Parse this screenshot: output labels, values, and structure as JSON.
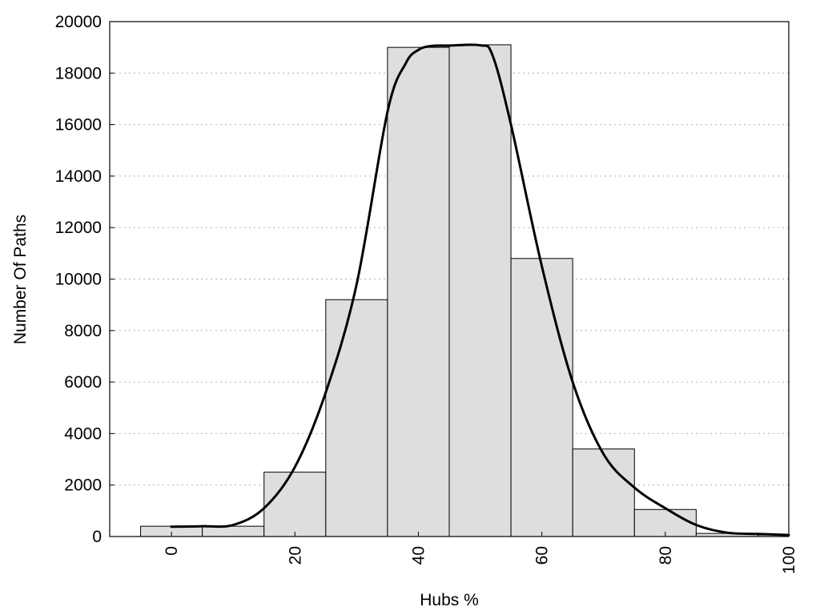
{
  "chart_data": {
    "type": "bar",
    "title": "",
    "xlabel": "Hubs %",
    "ylabel": "Number Of Paths",
    "xlim": [
      -10,
      100
    ],
    "ylim": [
      0,
      20000
    ],
    "xticks": [
      0,
      20,
      40,
      60,
      80,
      100
    ],
    "yticks": [
      0,
      2000,
      4000,
      6000,
      8000,
      10000,
      12000,
      14000,
      16000,
      18000,
      20000
    ],
    "grid": "horizontal-dotted",
    "bar_width": 10,
    "bar_color": "#dedede",
    "x": [
      0,
      10,
      20,
      30,
      40,
      50,
      60,
      70,
      80,
      90,
      100
    ],
    "values": [
      400,
      400,
      2500,
      9200,
      19000,
      19100,
      10800,
      3400,
      1050,
      120,
      60
    ],
    "curve": {
      "x": [
        0,
        5,
        10,
        15,
        20,
        25,
        30,
        35,
        38,
        40,
        42,
        45,
        50,
        52,
        55,
        60,
        65,
        70,
        75,
        80,
        85,
        90,
        95,
        100
      ],
      "y": [
        380,
        400,
        450,
        1100,
        2700,
        5600,
        9800,
        16500,
        18400,
        18900,
        19050,
        19070,
        19080,
        18700,
        16000,
        10500,
        6000,
        3200,
        1900,
        1100,
        450,
        150,
        100,
        60
      ]
    }
  }
}
